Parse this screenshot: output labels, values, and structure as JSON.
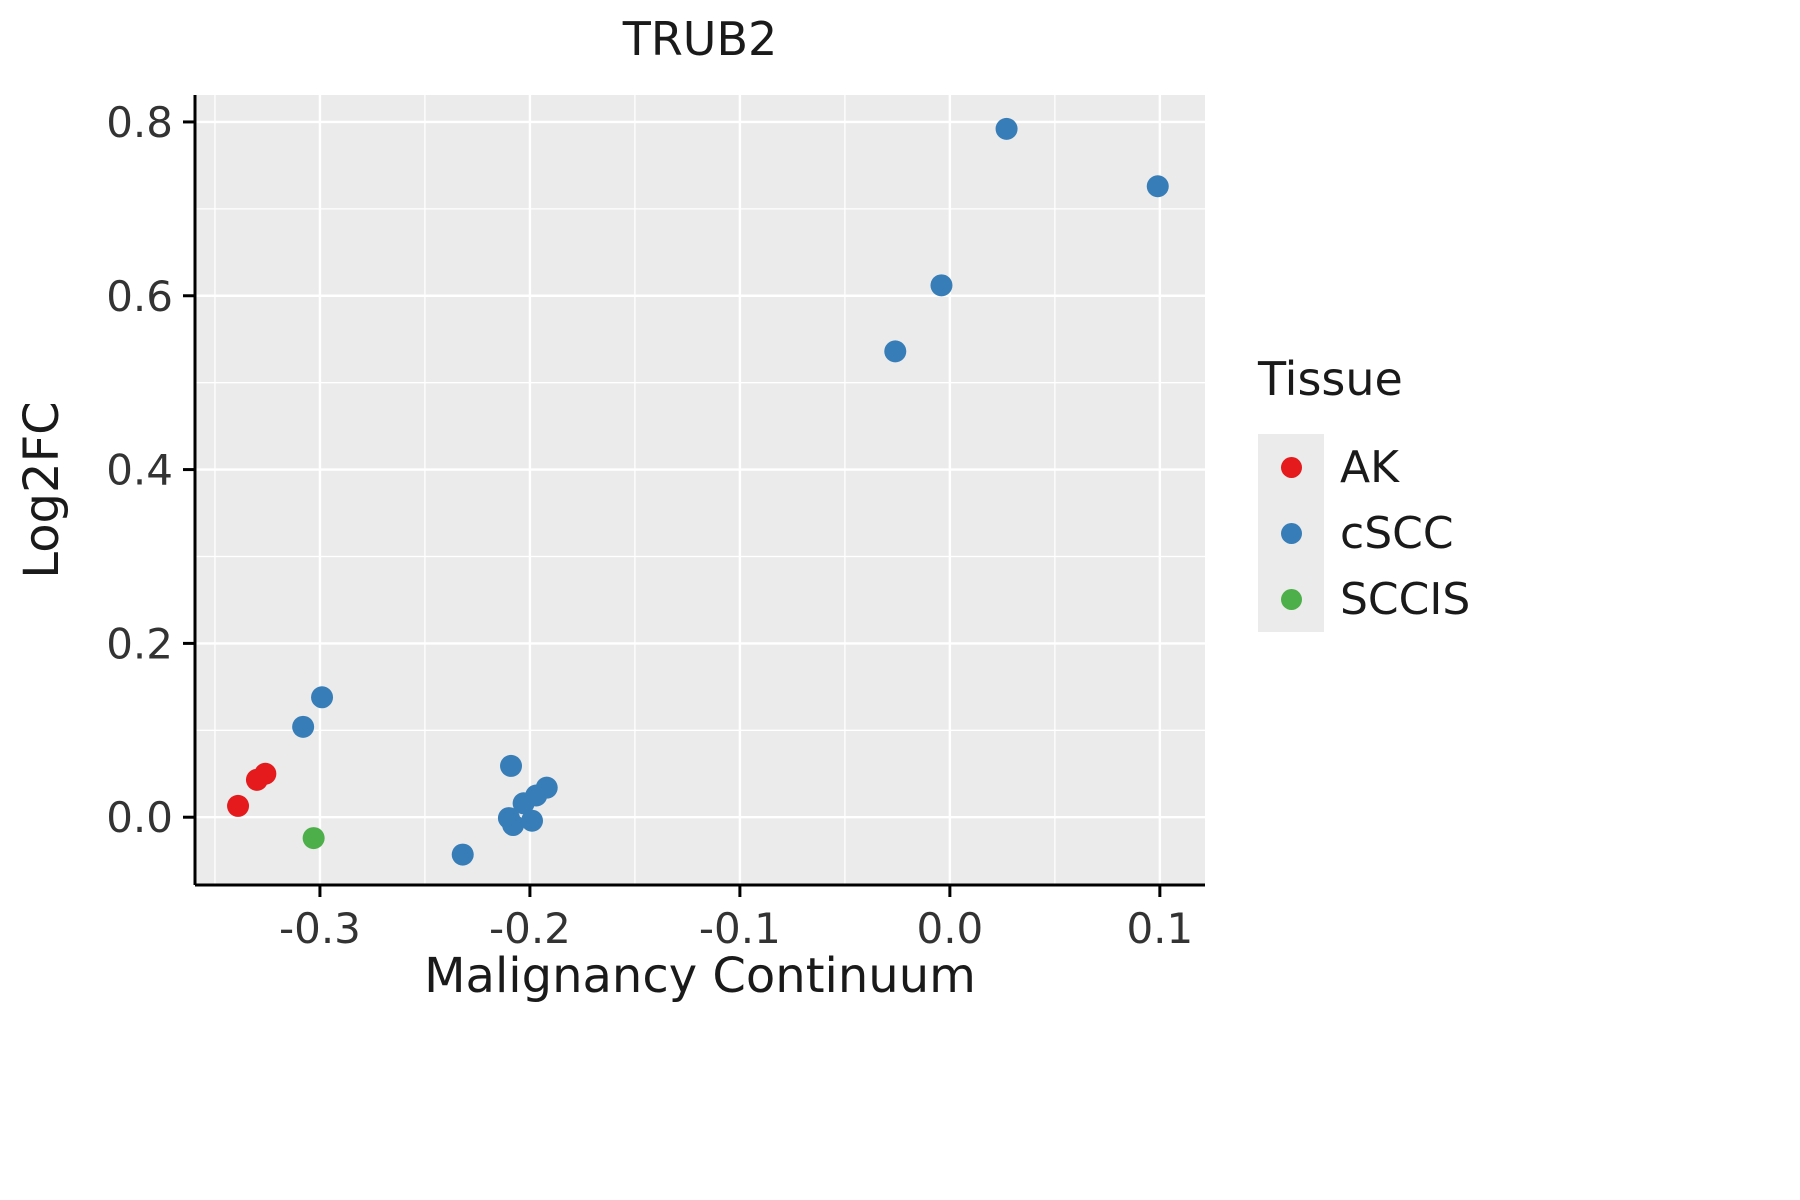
{
  "chart_data": {
    "type": "scatter",
    "title": "TRUB2",
    "xlabel": "Malignancy Continuum",
    "ylabel": "Log2FC",
    "xlim": [
      -0.3595,
      0.1215
    ],
    "ylim": [
      -0.078,
      0.831
    ],
    "x_ticks": {
      "values": [
        -0.3,
        -0.2,
        -0.1,
        0.0,
        0.1
      ],
      "labels": [
        "-0.3",
        "-0.2",
        "-0.1",
        "0.0",
        "0.1"
      ]
    },
    "y_ticks": {
      "values": [
        0.0,
        0.2,
        0.4,
        0.6,
        0.8
      ],
      "labels": [
        "0.0",
        "0.2",
        "0.4",
        "0.6",
        "0.8"
      ]
    },
    "grid": true,
    "panel_background": "#EBEBEB",
    "grid_color": "#FFFFFF",
    "axis_line_color": "#000000",
    "tick_label_color": "#333333",
    "point_radius": 11,
    "legend": {
      "title": "Tissue",
      "position": "right"
    },
    "series": [
      {
        "name": "AK",
        "color": "#E41A1C",
        "points": [
          [
            -0.339,
            0.013
          ],
          [
            -0.33,
            0.043
          ],
          [
            -0.326,
            0.05
          ]
        ]
      },
      {
        "name": "cSCC",
        "color": "#377EB8",
        "points": [
          [
            -0.308,
            0.104
          ],
          [
            -0.299,
            0.138
          ],
          [
            -0.232,
            -0.043
          ],
          [
            -0.209,
            0.059
          ],
          [
            -0.21,
            -0.001
          ],
          [
            -0.208,
            -0.009
          ],
          [
            -0.203,
            0.016
          ],
          [
            -0.199,
            -0.004
          ],
          [
            -0.197,
            0.025
          ],
          [
            -0.192,
            0.034
          ],
          [
            -0.026,
            0.536
          ],
          [
            -0.004,
            0.612
          ],
          [
            0.027,
            0.792
          ],
          [
            0.099,
            0.726
          ]
        ]
      },
      {
        "name": "SCCIS",
        "color": "#4DAF4A",
        "points": [
          [
            -0.303,
            -0.024
          ]
        ]
      }
    ]
  }
}
